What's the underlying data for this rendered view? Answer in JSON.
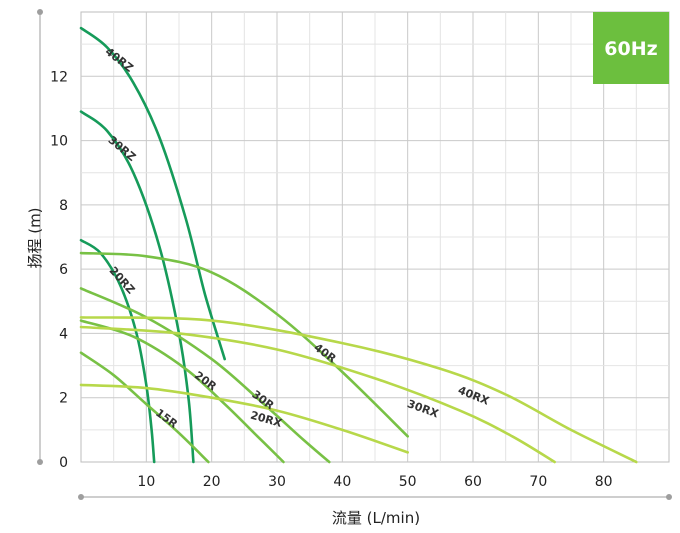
{
  "chart_data": {
    "type": "line",
    "title": "",
    "xlabel": "流量 (L/min)",
    "ylabel": "扬程 (m)",
    "xlim": [
      0,
      90
    ],
    "ylim": [
      0,
      14
    ],
    "x_ticks": [
      10,
      20,
      30,
      40,
      50,
      60,
      70,
      80
    ],
    "y_ticks": [
      0,
      2,
      4,
      6,
      8,
      10,
      12
    ],
    "grid": true,
    "badge": {
      "text": "60Hz",
      "color": "#6cbf3e"
    },
    "colors": {
      "dark_green": "#169b5a",
      "mid_green": "#78c145",
      "light_green": "#b7d84a"
    },
    "series": [
      {
        "name": "40RZ",
        "color": "dark_green",
        "x": [
          0,
          4,
          8,
          12,
          16,
          19,
          22
        ],
        "y": [
          13.5,
          12.9,
          11.8,
          10.1,
          7.6,
          5.2,
          3.2
        ]
      },
      {
        "name": "30RZ",
        "color": "dark_green",
        "x": [
          0,
          4,
          8,
          12,
          15,
          16.5,
          17.2
        ],
        "y": [
          10.9,
          10.3,
          9.0,
          6.7,
          4.0,
          1.9,
          0
        ]
      },
      {
        "name": "20RZ",
        "color": "dark_green",
        "x": [
          0,
          3,
          6,
          8.5,
          10,
          10.8,
          11.2
        ],
        "y": [
          6.9,
          6.5,
          5.5,
          4.0,
          2.4,
          1.0,
          0
        ]
      },
      {
        "name": "40R",
        "color": "mid_green",
        "x": [
          0,
          10,
          20,
          30,
          40,
          50
        ],
        "y": [
          6.5,
          6.4,
          5.9,
          4.6,
          2.8,
          0.8
        ]
      },
      {
        "name": "30R",
        "color": "mid_green",
        "x": [
          0,
          10,
          20,
          28,
          34,
          38
        ],
        "y": [
          5.4,
          4.5,
          3.2,
          1.8,
          0.7,
          0
        ]
      },
      {
        "name": "20R",
        "color": "mid_green",
        "x": [
          0,
          8,
          16,
          22,
          27,
          31
        ],
        "y": [
          4.4,
          3.9,
          2.9,
          1.8,
          0.8,
          0
        ]
      },
      {
        "name": "15R",
        "color": "mid_green",
        "x": [
          0,
          5,
          10,
          15,
          19.5
        ],
        "y": [
          3.4,
          2.7,
          1.8,
          0.9,
          0
        ]
      },
      {
        "name": "20RX",
        "color": "light_green",
        "x": [
          0,
          10,
          20,
          30,
          40,
          50
        ],
        "y": [
          2.4,
          2.3,
          2.0,
          1.6,
          1.0,
          0.3
        ]
      },
      {
        "name": "30RX",
        "color": "light_green",
        "x": [
          0,
          15,
          30,
          45,
          58,
          66,
          72.5
        ],
        "y": [
          4.2,
          4.0,
          3.5,
          2.6,
          1.6,
          0.8,
          0
        ]
      },
      {
        "name": "40RX",
        "color": "light_green",
        "x": [
          0,
          20,
          40,
          55,
          65,
          75,
          85
        ],
        "y": [
          4.5,
          4.4,
          3.7,
          2.9,
          2.1,
          1.0,
          0
        ]
      }
    ]
  }
}
